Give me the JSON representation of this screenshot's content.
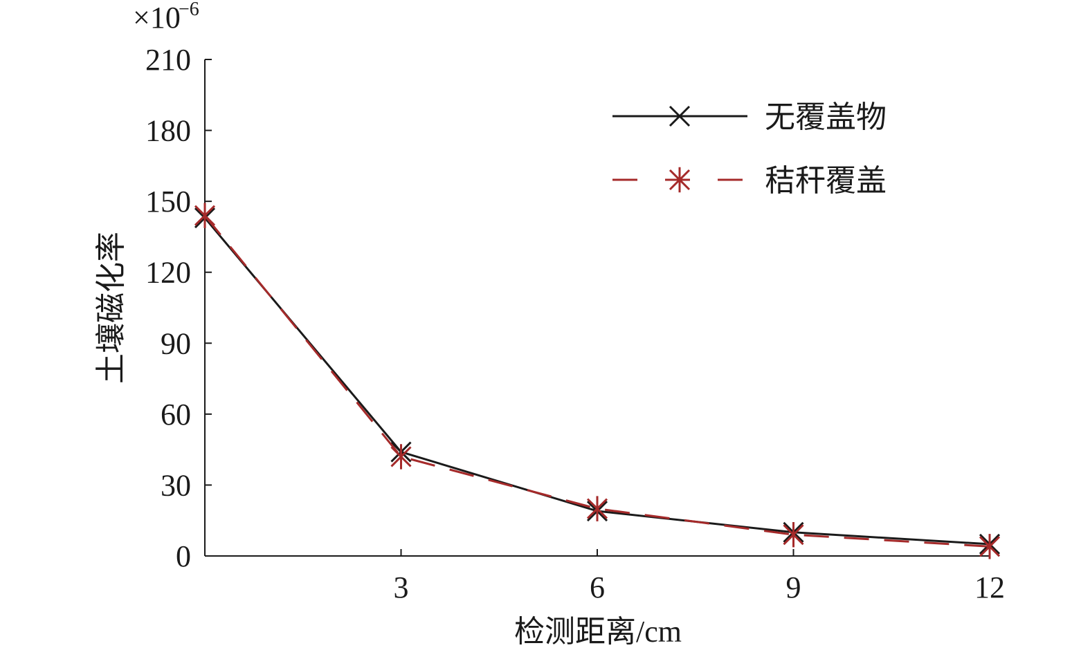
{
  "chart_data": {
    "type": "line",
    "y_multiplier": {
      "base": "×10",
      "exponent": "−6"
    },
    "xlabel": "检测距离/cm",
    "ylabel": "土壤磁化率",
    "x": [
      0,
      3,
      6,
      9,
      12
    ],
    "series": [
      {
        "name": "无覆盖物",
        "color": "#1a1a1a",
        "marker": "x",
        "dash": false,
        "values": [
          143,
          44,
          19,
          10,
          5
        ]
      },
      {
        "name": "秸秆覆盖",
        "color": "#a52a2a",
        "marker": "asterisk",
        "dash": true,
        "values": [
          144,
          42,
          20,
          9,
          4
        ]
      }
    ],
    "xlim": [
      0,
      12
    ],
    "xticks": [
      3,
      6,
      9,
      12
    ],
    "ylim": [
      0,
      210
    ],
    "yticks": [
      0,
      30,
      60,
      90,
      120,
      150,
      180,
      210
    ],
    "legend": "upper right"
  }
}
